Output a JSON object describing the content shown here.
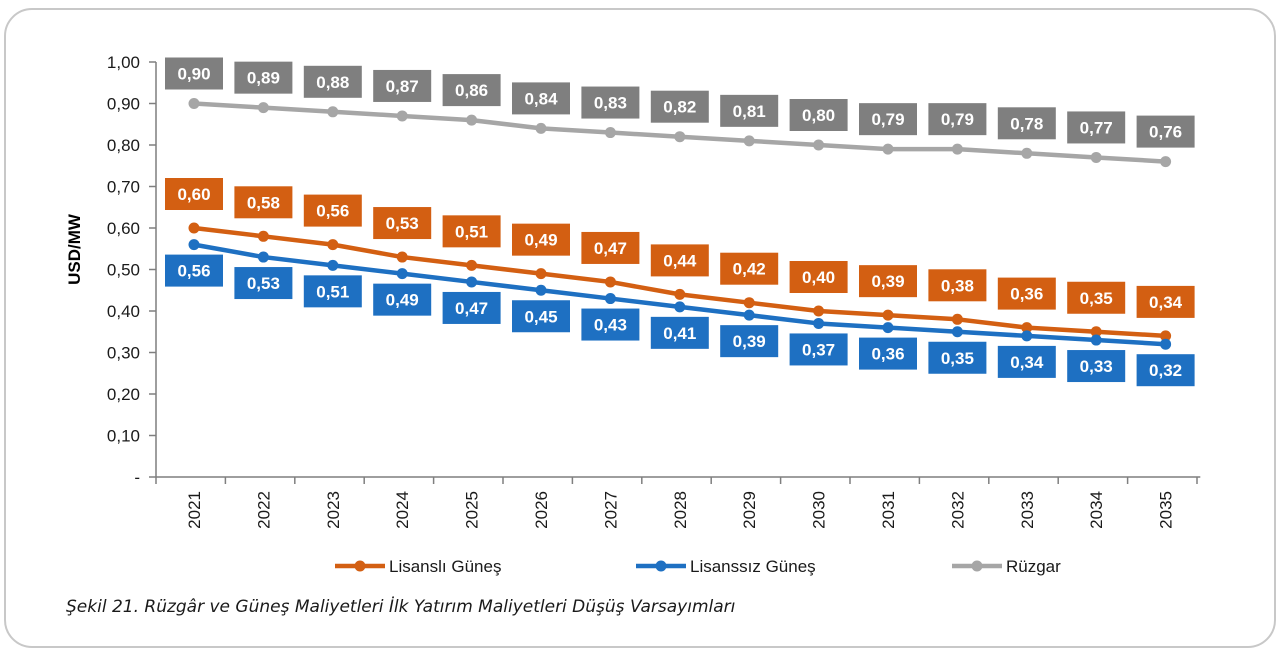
{
  "caption": "Şekil 21. Rüzgâr ve Güneş Maliyetleri İlk Yatırım Maliyetleri Düşüş Varsayımları",
  "chart_data": {
    "type": "line",
    "title": "",
    "xlabel": "",
    "ylabel": "USD/MW",
    "ylim": [
      0,
      1.0
    ],
    "y_ticks": [
      "-",
      "0,10",
      "0,20",
      "0,30",
      "0,40",
      "0,50",
      "0,60",
      "0,70",
      "0,80",
      "0,90",
      "1,00"
    ],
    "categories": [
      "2021",
      "2022",
      "2023",
      "2024",
      "2025",
      "2026",
      "2027",
      "2028",
      "2029",
      "2030",
      "2031",
      "2032",
      "2033",
      "2034",
      "2035"
    ],
    "grid": false,
    "legend_position": "bottom",
    "series": [
      {
        "name": "Lisanslı Güneş",
        "color": "#d35f12",
        "values": [
          0.6,
          0.58,
          0.56,
          0.53,
          0.51,
          0.49,
          0.47,
          0.44,
          0.42,
          0.4,
          0.39,
          0.38,
          0.36,
          0.35,
          0.34
        ],
        "labels": [
          "0,60",
          "0,58",
          "0,56",
          "0,53",
          "0,51",
          "0,49",
          "0,47",
          "0,44",
          "0,42",
          "0,40",
          "0,39",
          "0,38",
          "0,36",
          "0,35",
          "0,34"
        ]
      },
      {
        "name": "Lisanssız Güneş",
        "color": "#1e70c2",
        "values": [
          0.56,
          0.53,
          0.51,
          0.49,
          0.47,
          0.45,
          0.43,
          0.41,
          0.39,
          0.37,
          0.36,
          0.35,
          0.34,
          0.33,
          0.32
        ],
        "labels": [
          "0,56",
          "0,53",
          "0,51",
          "0,49",
          "0,47",
          "0,45",
          "0,43",
          "0,41",
          "0,39",
          "0,37",
          "0,36",
          "0,35",
          "0,34",
          "0,33",
          "0,32"
        ]
      },
      {
        "name": "Rüzgar",
        "color": "#a6a6a6",
        "label_color": "#7f7f7f",
        "values": [
          0.9,
          0.89,
          0.88,
          0.87,
          0.86,
          0.84,
          0.83,
          0.82,
          0.81,
          0.8,
          0.79,
          0.79,
          0.78,
          0.77,
          0.76
        ],
        "labels": [
          "0,90",
          "0,89",
          "0,88",
          "0,87",
          "0,86",
          "0,84",
          "0,83",
          "0,82",
          "0,81",
          "0,80",
          "0,79",
          "0,79",
          "0,78",
          "0,77",
          "0,76"
        ]
      }
    ]
  }
}
